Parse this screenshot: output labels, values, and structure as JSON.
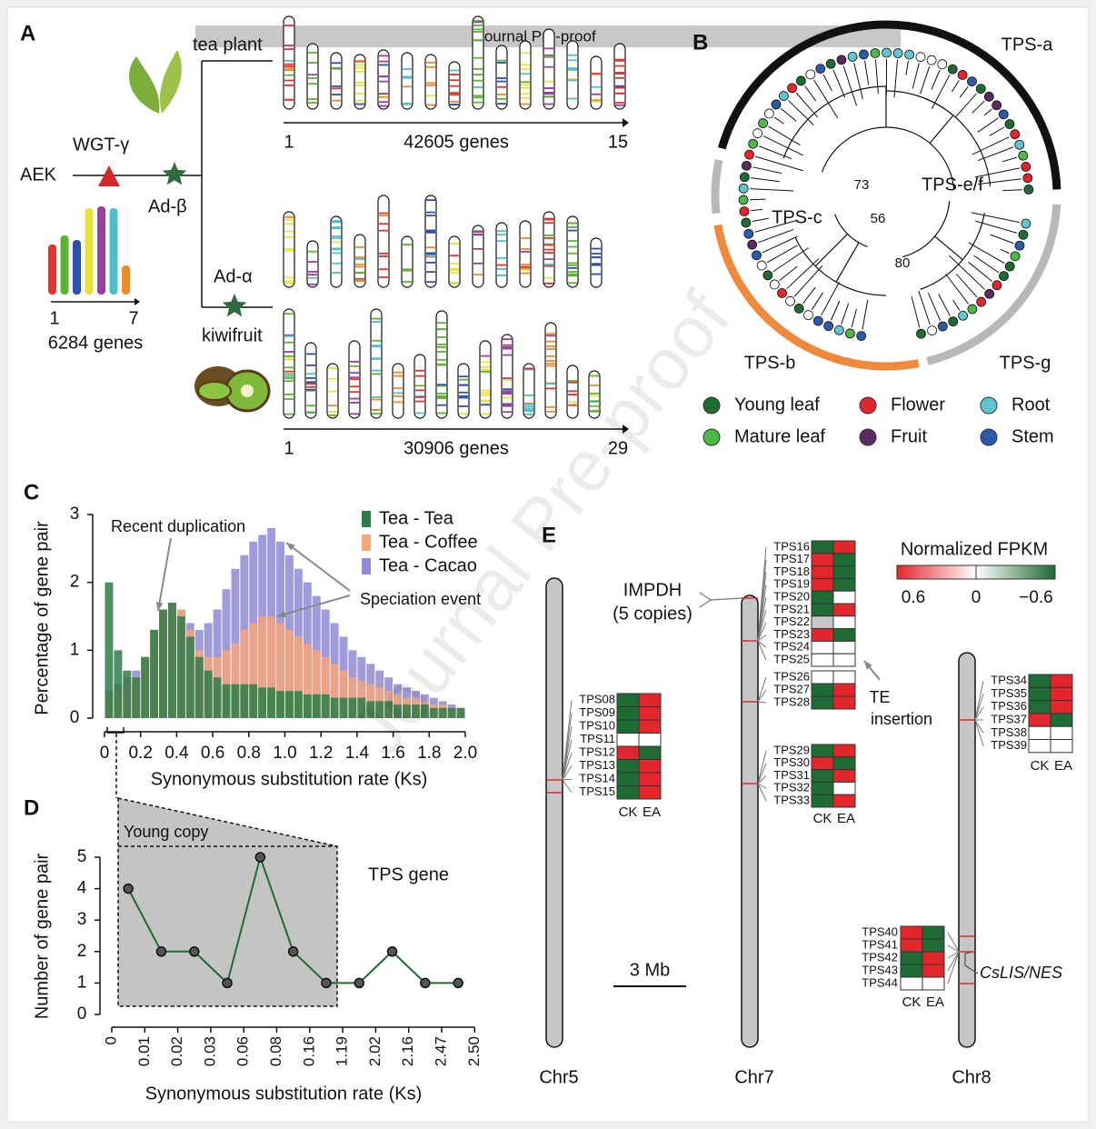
{
  "watermark": "Journal Pre-proof",
  "panel_a": {
    "label": "A",
    "tea_plant": "tea plant",
    "tea_genes": "42605 genes",
    "tea_first": "1",
    "tea_last": "15",
    "wgt": "WGT-γ",
    "aek": "AEK",
    "ad_beta": "Ad-β",
    "ad_alpha": "Ad-α",
    "kiwifruit": "kiwifruit",
    "kiwi_genes": "30906 genes",
    "kiwi_first": "1",
    "kiwi_last": "29",
    "aek_first": "1",
    "aek_last": "7",
    "aek_genes": "6284 genes"
  },
  "panel_b": {
    "label": "B",
    "clades": [
      "TPS-a",
      "TPS-e/f",
      "TPS-c",
      "TPS-b",
      "TPS-g"
    ],
    "bootstrap": [
      73,
      56,
      80
    ],
    "legend": [
      {
        "name": "Young leaf",
        "color": "#1e6b33"
      },
      {
        "name": "Flower",
        "color": "#e3262b"
      },
      {
        "name": "Root",
        "color": "#5fc6cf"
      },
      {
        "name": "Mature leaf",
        "color": "#4cb848"
      },
      {
        "name": "Fruit",
        "color": "#5a2a63"
      },
      {
        "name": "Stem",
        "color": "#2b5aa8"
      }
    ]
  },
  "panel_c": {
    "type": "histogram",
    "label": "C",
    "ylabel": "Percentage of gene pair",
    "xlabel": "Synonymous substitution rate (Ks)",
    "bins": [
      0,
      0.05,
      0.1,
      0.15,
      0.2,
      0.25,
      0.3,
      0.35,
      0.4,
      0.45,
      0.5,
      0.55,
      0.6,
      0.65,
      0.7,
      0.75,
      0.8,
      0.85,
      0.9,
      0.95,
      1,
      1.05,
      1.1,
      1.15,
      1.2,
      1.25,
      1.3,
      1.35,
      1.4,
      1.45,
      1.5,
      1.55,
      1.6,
      1.65,
      1.7,
      1.75,
      1.8,
      1.85,
      1.9,
      1.95,
      2
    ],
    "series": [
      {
        "name": "Tea - Cacao",
        "color": "#8f8bd6",
        "values": [
          0.4,
          0.5,
          0.6,
          0.7,
          0.9,
          1.3,
          1.6,
          1.7,
          1.6,
          1.4,
          1.3,
          1.4,
          1.6,
          1.9,
          2.2,
          2.4,
          2.6,
          2.7,
          2.8,
          2.6,
          2.4,
          2.2,
          2.0,
          1.8,
          1.6,
          1.4,
          1.2,
          1.0,
          0.9,
          0.8,
          0.7,
          0.6,
          0.5,
          0.45,
          0.4,
          0.35,
          0.3,
          0.25,
          0.2,
          0.15
        ]
      },
      {
        "name": "Tea - Coffee",
        "color": "#f5a57a",
        "values": [
          0.3,
          0.4,
          0.5,
          0.6,
          0.9,
          1.3,
          1.6,
          1.7,
          1.6,
          1.3,
          1.0,
          0.9,
          0.9,
          1.0,
          1.1,
          1.3,
          1.4,
          1.5,
          1.5,
          1.4,
          1.3,
          1.2,
          1.1,
          1.0,
          0.9,
          0.8,
          0.7,
          0.6,
          0.55,
          0.5,
          0.45,
          0.4,
          0.35,
          0.3,
          0.3,
          0.25,
          0.2,
          0.2,
          0.15,
          0.15
        ]
      },
      {
        "name": "Tea - Tea",
        "color": "#2e7d46",
        "values": [
          2.0,
          1.0,
          0.7,
          0.6,
          0.9,
          1.3,
          1.6,
          1.7,
          1.5,
          1.2,
          0.9,
          0.7,
          0.6,
          0.5,
          0.5,
          0.5,
          0.5,
          0.45,
          0.45,
          0.4,
          0.4,
          0.4,
          0.35,
          0.35,
          0.35,
          0.3,
          0.3,
          0.3,
          0.3,
          0.25,
          0.25,
          0.25,
          0.2,
          0.2,
          0.2,
          0.2,
          0.15,
          0.15,
          0.15,
          0.15
        ]
      }
    ],
    "legend_order": [
      2,
      1,
      0
    ],
    "xlim": [
      0,
      2
    ],
    "xticks": [
      0,
      0.2,
      0.4,
      0.6,
      0.8,
      {
        "value": 1,
        "label": "1.0"
      },
      1.2,
      1.4,
      1.6,
      1.8,
      {
        "value": 2,
        "label": "2.0"
      }
    ],
    "ylim": [
      0,
      3
    ],
    "yticks": [
      0,
      1,
      2,
      3
    ],
    "annotations": [
      "Recent duplication",
      "Speciation event"
    ]
  },
  "panel_d": {
    "type": "line",
    "label": "D",
    "ylabel": "Number of gene pair",
    "xlabel": "Synonymous substitution rate (Ks)",
    "bins": [
      "0",
      "0.01",
      "0.02",
      "0.03",
      "0.06",
      "0.08",
      "0.16",
      "1.19",
      "2.02",
      "2.16",
      "2.47",
      "2.50"
    ],
    "values": [
      4,
      2,
      2,
      1,
      5,
      2,
      1,
      1,
      2,
      1,
      1
    ],
    "color": "#1e6b33",
    "ylim": [
      0,
      5
    ],
    "yticks": [
      0,
      1,
      2,
      3,
      4,
      5
    ],
    "annotations": [
      "Young copy",
      "TPS gene"
    ]
  },
  "panel_e": {
    "label": "E",
    "columns": [
      "CK",
      "EA"
    ],
    "legend": {
      "title": "Normalized FPKM",
      "colors": [
        "#e3262b",
        "#ffffff",
        "#1e6b33"
      ],
      "na_color": "#c8c8c8",
      "ticks": [
        0.6,
        0,
        {
          "value": -0.6,
          "label": "−0.6"
        }
      ]
    },
    "chromosomes": [
      {
        "name": "Chr5",
        "groups": [
          [
            {
              "name": "TPS08",
              "values": [
                -0.6,
                0.6
              ]
            },
            {
              "name": "TPS09",
              "values": [
                -0.6,
                0.6
              ]
            },
            {
              "name": "TPS10",
              "values": [
                -0.6,
                0.6
              ]
            },
            {
              "name": "TPS11",
              "values": [
                0,
                0
              ]
            },
            {
              "name": "TPS12",
              "values": [
                0.6,
                -0.6
              ]
            },
            {
              "name": "TPS13",
              "values": [
                -0.6,
                0.6
              ]
            },
            {
              "name": "TPS14",
              "values": [
                -0.6,
                0.6
              ]
            },
            {
              "name": "TPS15",
              "values": [
                -0.6,
                0.6
              ]
            }
          ]
        ]
      },
      {
        "name": "Chr7",
        "groups": [
          [
            {
              "name": "TPS16",
              "values": [
                -0.6,
                0.6
              ]
            },
            {
              "name": "TPS17",
              "values": [
                0.6,
                -0.6
              ]
            },
            {
              "name": "TPS18",
              "values": [
                0.6,
                -0.6
              ]
            },
            {
              "name": "TPS19",
              "values": [
                0.6,
                -0.6
              ]
            },
            {
              "name": "TPS20",
              "values": [
                -0.6,
                0
              ]
            },
            {
              "name": "TPS21",
              "values": [
                -0.6,
                0.6
              ]
            },
            {
              "name": "TPS22",
              "values": [
                null,
                0
              ]
            },
            {
              "name": "TPS23",
              "values": [
                0.6,
                -0.6
              ]
            },
            {
              "name": "TPS24",
              "values": [
                0,
                0
              ]
            },
            {
              "name": "TPS25",
              "values": [
                0,
                0
              ]
            }
          ],
          [
            {
              "name": "TPS26",
              "values": [
                0,
                0
              ]
            },
            {
              "name": "TPS27",
              "values": [
                -0.6,
                0.6
              ]
            },
            {
              "name": "TPS28",
              "values": [
                -0.6,
                0.6
              ]
            }
          ],
          [
            {
              "name": "TPS29",
              "values": [
                -0.6,
                0.6
              ]
            },
            {
              "name": "TPS30",
              "values": [
                0.6,
                -0.6
              ]
            },
            {
              "name": "TPS31",
              "values": [
                -0.6,
                0.6
              ]
            },
            {
              "name": "TPS32",
              "values": [
                -0.6,
                0
              ]
            },
            {
              "name": "TPS33",
              "values": [
                -0.6,
                0.6
              ]
            }
          ]
        ]
      },
      {
        "name": "Chr8",
        "groups": [
          [
            {
              "name": "TPS34",
              "values": [
                -0.6,
                0.6
              ]
            },
            {
              "name": "TPS35",
              "values": [
                -0.6,
                0.6
              ]
            },
            {
              "name": "TPS36",
              "values": [
                -0.6,
                0.6
              ]
            },
            {
              "name": "TPS37",
              "values": [
                0.6,
                -0.6
              ]
            },
            {
              "name": "TPS38",
              "values": [
                0,
                0
              ]
            },
            {
              "name": "TPS39",
              "values": [
                0,
                0
              ]
            }
          ],
          [
            {
              "name": "TPS40",
              "values": [
                0.6,
                -0.6
              ]
            },
            {
              "name": "TPS41",
              "values": [
                0.6,
                -0.6
              ]
            },
            {
              "name": "TPS42",
              "values": [
                -0.6,
                0.6
              ]
            },
            {
              "name": "TPS43",
              "values": [
                -0.6,
                0.6
              ]
            },
            {
              "name": "TPS44",
              "values": [
                0,
                0
              ]
            }
          ]
        ]
      }
    ],
    "annotations": {
      "impdh": "IMPDH",
      "copies": "(5 copies)",
      "te1": "TE",
      "te2": "insertion",
      "scale": "3 Mb",
      "gene": "CsLIS/NES"
    }
  }
}
